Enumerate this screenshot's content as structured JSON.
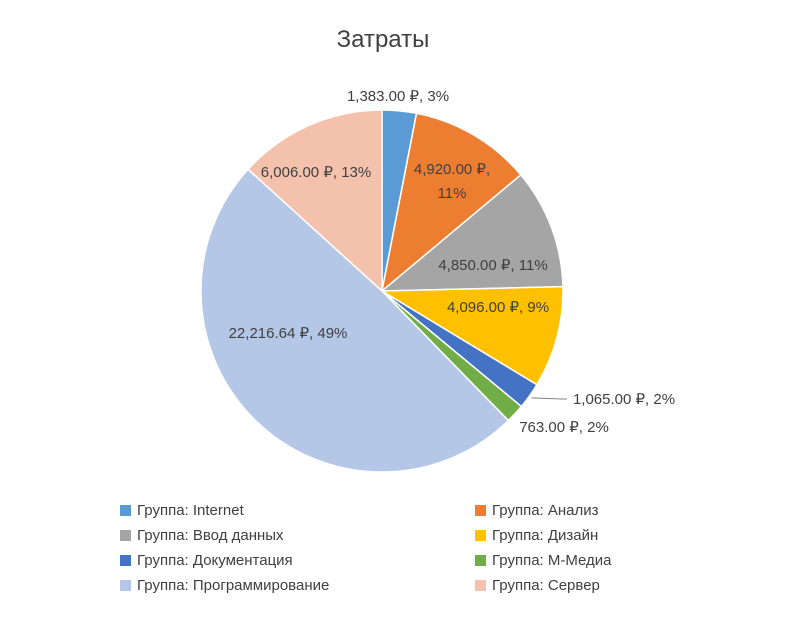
{
  "chart_data": {
    "type": "pie",
    "title": "Затраты",
    "slices": [
      {
        "name": "Группа: Internet",
        "value": 1383.0,
        "label": "1,383.00 ₽, 3%",
        "color": "#5B9BD5"
      },
      {
        "name": "Группа: Анализ",
        "value": 4920.0,
        "label": "4,920.00 ₽, 11%",
        "color": "#ED7D31"
      },
      {
        "name": "Группа: Ввод данных",
        "value": 4850.0,
        "label": "4,850.00 ₽, 11%",
        "color": "#A5A5A5"
      },
      {
        "name": "Группа: Дизайн",
        "value": 4096.0,
        "label": "4,096.00 ₽, 9%",
        "color": "#FFC000"
      },
      {
        "name": "Группа: Документация",
        "value": 1065.0,
        "label": "1,065.00 ₽, 2%",
        "color": "#4472C4"
      },
      {
        "name": "Группа: M-Медиа",
        "value": 763.0,
        "label": "763.00 ₽, 2%",
        "color": "#70AD47"
      },
      {
        "name": "Группа: Программирование",
        "value": 22216.64,
        "label": "22,216.64 ₽, 49%",
        "color": "#B4C7E7"
      },
      {
        "name": "Группа: Сервер",
        "value": 6006.0,
        "label": "6,006.00 ₽, 13%",
        "color": "#F4C2AC"
      }
    ],
    "legend_position": "bottom"
  }
}
